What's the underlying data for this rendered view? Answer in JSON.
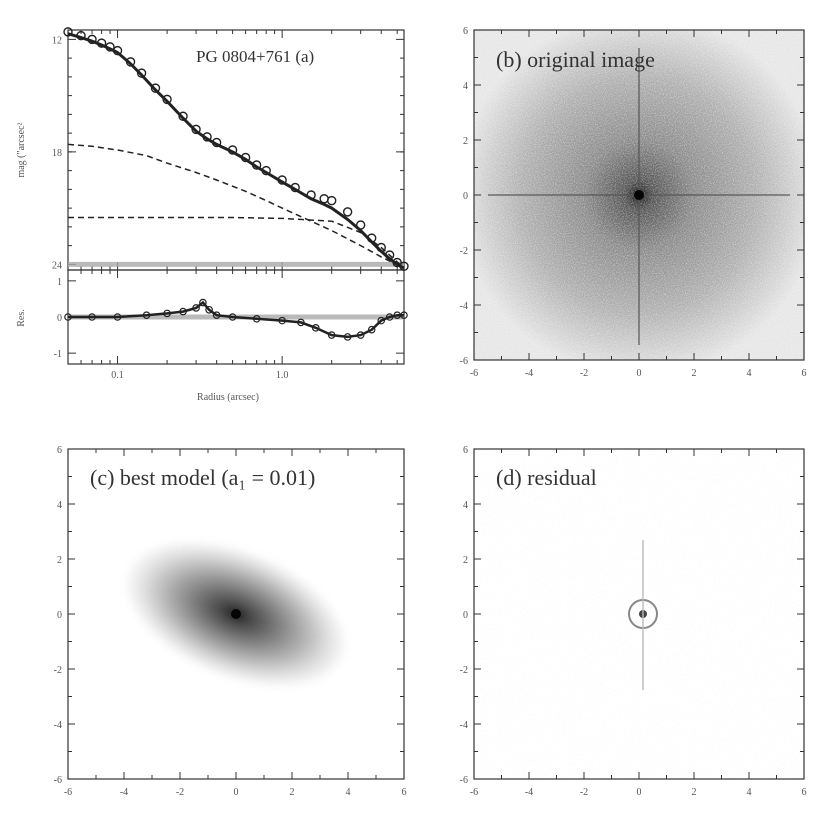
{
  "chart_data": [
    {
      "type": "line",
      "panel": "a",
      "title": "PG 0804+761 (a)",
      "xlabel": "Radius (arcsec)",
      "ylabel": "mag (\"arcsec²",
      "xscale": "log",
      "xlim": [
        0.05,
        5.5
      ],
      "ylim": [
        24.3,
        11.5
      ],
      "yticks": [
        {
          "v": 12,
          "label": "12"
        },
        {
          "v": 18,
          "label": "18"
        },
        {
          "v": 24,
          "label": "24"
        }
      ],
      "xticks": [
        {
          "v": 0.1,
          "label": "0.1"
        },
        {
          "v": 1.0,
          "label": "1.0"
        }
      ],
      "series": [
        {
          "style": "data",
          "x": [
            0.05,
            0.06,
            0.07,
            0.08,
            0.09,
            0.1,
            0.12,
            0.14,
            0.17,
            0.2,
            0.25,
            0.3,
            0.35,
            0.4,
            0.5,
            0.6,
            0.7,
            0.8,
            1.0,
            1.2,
            1.5,
            1.8,
            2.0,
            2.5,
            3.0,
            3.5,
            4.0,
            4.5,
            5.0,
            5.5
          ],
          "y": [
            11.6,
            11.8,
            12.0,
            12.2,
            12.4,
            12.6,
            13.2,
            13.8,
            14.6,
            15.2,
            16.1,
            16.8,
            17.2,
            17.5,
            17.9,
            18.3,
            18.7,
            19.0,
            19.5,
            19.9,
            20.3,
            20.5,
            20.6,
            21.2,
            21.9,
            22.6,
            23.1,
            23.5,
            23.9,
            24.1
          ]
        },
        {
          "style": "model",
          "x": [
            0.05,
            0.06,
            0.07,
            0.08,
            0.09,
            0.1,
            0.12,
            0.14,
            0.17,
            0.2,
            0.25,
            0.3,
            0.35,
            0.4,
            0.5,
            0.6,
            0.7,
            0.8,
            1.0,
            1.2,
            1.5,
            1.8,
            2.0,
            2.5,
            3.0,
            3.5,
            4.0,
            4.5,
            5.0,
            5.5
          ],
          "y": [
            11.7,
            11.9,
            12.1,
            12.3,
            12.5,
            12.7,
            13.3,
            13.9,
            14.7,
            15.3,
            16.2,
            16.9,
            17.3,
            17.6,
            18.0,
            18.4,
            18.8,
            19.1,
            19.6,
            20.0,
            20.5,
            20.8,
            21.0,
            21.6,
            22.2,
            22.8,
            23.3,
            23.7,
            24.0,
            24.2
          ]
        },
        {
          "style": "dashed",
          "x": [
            0.05,
            0.07,
            0.1,
            0.15,
            0.2,
            0.3,
            0.4,
            0.6,
            0.8,
            1.0,
            1.5,
            2.0,
            3.0,
            4.0,
            5.5
          ],
          "y": [
            17.6,
            17.7,
            17.9,
            18.2,
            18.6,
            19.1,
            19.5,
            20.1,
            20.6,
            21.0,
            21.7,
            22.2,
            23.0,
            23.6,
            24.2
          ]
        },
        {
          "style": "dashed",
          "x": [
            0.05,
            0.5,
            1.0,
            2.0,
            3.0,
            4.0,
            5.5
          ],
          "y": [
            21.5,
            21.5,
            21.55,
            21.7,
            22.3,
            23.1,
            24.2
          ]
        }
      ]
    },
    {
      "type": "line",
      "panel": "a-residual",
      "ylabel": "Res.",
      "xscale": "log",
      "xlim": [
        0.05,
        5.5
      ],
      "ylim": [
        -1.3,
        1.3
      ],
      "yticks": [
        {
          "v": 1,
          "label": "1"
        },
        {
          "v": 0,
          "label": "0"
        },
        {
          "v": -1,
          "label": "-1"
        }
      ],
      "series": [
        {
          "style": "data",
          "x": [
            0.05,
            0.07,
            0.1,
            0.15,
            0.2,
            0.25,
            0.3,
            0.33,
            0.36,
            0.4,
            0.5,
            0.7,
            1.0,
            1.3,
            1.6,
            2.0,
            2.5,
            3.0,
            3.5,
            4.0,
            4.5,
            5.0,
            5.5
          ],
          "y": [
            0.0,
            0.0,
            0.0,
            0.05,
            0.1,
            0.15,
            0.25,
            0.4,
            0.2,
            0.05,
            0.0,
            -0.05,
            -0.1,
            -0.15,
            -0.3,
            -0.5,
            -0.55,
            -0.5,
            -0.35,
            -0.1,
            0.0,
            0.05,
            0.05
          ]
        }
      ]
    },
    {
      "type": "heatmap",
      "panel": "b",
      "title": "(b) original image",
      "xlim": [
        -6,
        6
      ],
      "ylim": [
        -6,
        6
      ],
      "ticks": [
        {
          "v": -6,
          "label": "-6"
        },
        {
          "v": -4,
          "label": "-4"
        },
        {
          "v": -2,
          "label": "-2"
        },
        {
          "v": 0,
          "label": "0"
        },
        {
          "v": 2,
          "label": "2"
        },
        {
          "v": 4,
          "label": "4"
        },
        {
          "v": 6,
          "label": "6"
        }
      ]
    },
    {
      "type": "heatmap",
      "panel": "c",
      "title": "(c) best model (a₁ = 0.01)",
      "xlim": [
        -6,
        6
      ],
      "ylim": [
        -6,
        6
      ],
      "ticks": [
        {
          "v": -6,
          "label": "-6"
        },
        {
          "v": -4,
          "label": "-4"
        },
        {
          "v": -2,
          "label": "-2"
        },
        {
          "v": 0,
          "label": "0"
        },
        {
          "v": 2,
          "label": "2"
        },
        {
          "v": 4,
          "label": "4"
        },
        {
          "v": 6,
          "label": "6"
        }
      ]
    },
    {
      "type": "heatmap",
      "panel": "d",
      "title": "(d) residual",
      "xlim": [
        -6,
        6
      ],
      "ylim": [
        -6,
        6
      ],
      "ticks": [
        {
          "v": -6,
          "label": "-6"
        },
        {
          "v": -4,
          "label": "-4"
        },
        {
          "v": -2,
          "label": "-2"
        },
        {
          "v": 0,
          "label": "0"
        },
        {
          "v": 2,
          "label": "2"
        },
        {
          "v": 4,
          "label": "4"
        },
        {
          "v": 6,
          "label": "6"
        }
      ]
    }
  ]
}
